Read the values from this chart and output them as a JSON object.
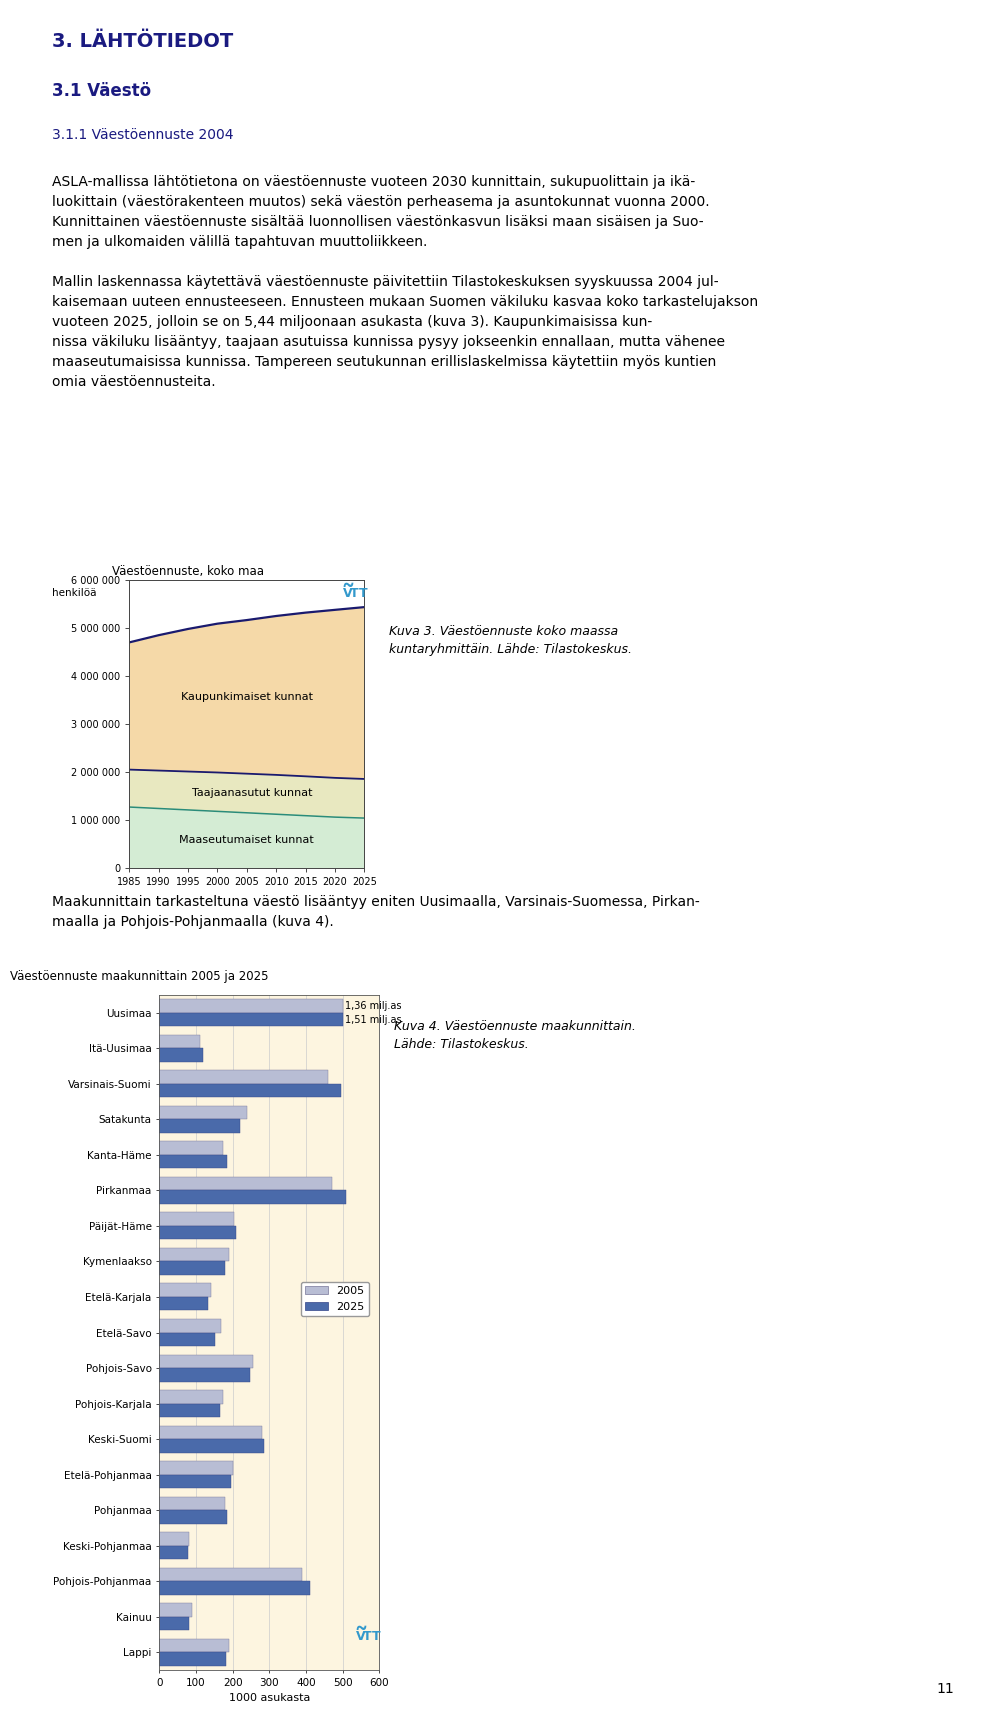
{
  "page_title": "3. LÄHTÖTIEDOT",
  "section_title": "3.1 Väestö",
  "subsection_title": "3.1.1 Väestöennuste 2004",
  "para1_lines": [
    "ASLA-mallissa lähtötietona on väestöennuste vuoteen 2030 kunnittain, sukupuolittain ja ikä-",
    "luokittain (väestörakenteen muutos) sekä väestön perheasema ja asuntokunnat vuonna 2000.",
    "Kunnittainen väestöennuste sisältää luonnollisen väestönkasvun lisäksi maan sisäisen ja Suo-",
    "men ja ulkomaiden välillä tapahtuvan muuttoliikkeen."
  ],
  "para2_lines": [
    "Mallin laskennassa käytettävä väestöennuste päivitettiin Tilastokeskuksen syyskuussa 2004 jul-",
    "kaisemaan uuteen ennusteeseen. Ennusteen mukaan Suomen väkiluku kasvaa koko tarkastelujakson",
    "vuoteen 2025, jolloin se on 5,44 miljoonaan asukasta (kuva 3). Kaupunkimaisissa kun-",
    "nissa väkiluku lisääntyy, taajaan asutuissa kunnissa pysyy jokseenkin ennallaan, mutta vähenee",
    "maaseutumaisissa kunnissa. Tampereen seutukunnan erillislaskelmissa käytettiin myös kuntien",
    "omia väestöennusteita."
  ],
  "para3_lines": [
    "Maakunnittain tarkasteltuna väestö lisääntyy eniten Uusimaalla, Varsinais-Suomessa, Pirkan-",
    "maalla ja Pohjois-Pohjanmaalla (kuva 4)."
  ],
  "page_number": "11",
  "chart1": {
    "title": "Väestöennuste, koko maa",
    "ylabel": "henkilöä",
    "years": [
      1985,
      1990,
      1995,
      2000,
      2005,
      2010,
      2015,
      2020,
      2025
    ],
    "kaupunkimaiset": [
      2650000,
      2820000,
      2970000,
      3100000,
      3200000,
      3310000,
      3410000,
      3500000,
      3580000
    ],
    "taajaanasutut": [
      780000,
      790000,
      800000,
      810000,
      815000,
      820000,
      820000,
      818000,
      815000
    ],
    "maaseutumaiset": [
      1270000,
      1240000,
      1210000,
      1180000,
      1150000,
      1120000,
      1090000,
      1060000,
      1040000
    ],
    "kaupunkimaiset_color": "#f5d9a8",
    "taajaanasutut_color": "#e8e8c0",
    "maaseutumaiset_color": "#d4ecd4",
    "line_color": "#1a1a6e",
    "teal_line_color": "#2a8c7a",
    "ylim": [
      0,
      6000000
    ],
    "ytick_labels": [
      "0",
      "1 000 000",
      "2 000 000",
      "3 000 000",
      "4 000 000",
      "5 000 000",
      "6 000 000"
    ],
    "caption": "Kuva 3. Väestöennuste koko maassa\nkuntaryhmittäin. Lähde: Tilastokeskus."
  },
  "chart2": {
    "title": "Väestöennuste maakunnittain 2005 ja 2025",
    "xlabel": "1000 asukasta",
    "xlim": [
      0,
      600
    ],
    "xticks": [
      0,
      100,
      200,
      300,
      400,
      500,
      600
    ],
    "color_2005": "#b8bdd4",
    "color_2025": "#4a6aaa",
    "bg_color": "#fdf5e0",
    "caption": "Kuva 4. Väestöennuste maakunnittain.\nLähde: Tilastokeskus.",
    "regions": [
      "Uusimaa",
      "Itä-Uusimaa",
      "Varsinais-Suomi",
      "Satakunta",
      "Kanta-Häme",
      "Pirkanmaa",
      "Päijät-Häme",
      "Kymenlaakso",
      "Etelä-Karjala",
      "Etelä-Savo",
      "Pohjois-Savo",
      "Pohjois-Karjala",
      "Keski-Suomi",
      "Etelä-Pohjanmaa",
      "Pohjanmaa",
      "Keski-Pohjanmaa",
      "Pohjois-Pohjanmaa",
      "Kainuu",
      "Lappi"
    ],
    "values_2005": [
      500,
      110,
      460,
      240,
      175,
      470,
      205,
      190,
      140,
      168,
      255,
      175,
      280,
      200,
      180,
      80,
      390,
      90,
      190
    ],
    "values_2025": [
      500,
      120,
      495,
      220,
      185,
      510,
      210,
      180,
      132,
      152,
      248,
      165,
      285,
      195,
      185,
      78,
      410,
      82,
      182
    ],
    "uusimaa_2005_full": "1,36 milj.as",
    "uusimaa_2025_full": "1,51 milj.as"
  }
}
